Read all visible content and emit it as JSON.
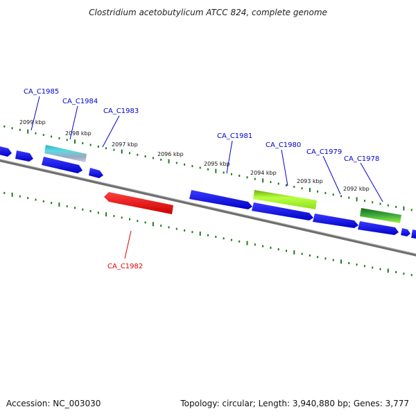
{
  "title": "Clostridium acetobutylicum ATCC 824, complete genome",
  "footer": {
    "accession": "Accession: NC_003030",
    "summary": "Topology: circular; Length: 3,940,880 bp; Genes: 3,777"
  },
  "ruler": {
    "ticks": [
      {
        "label": "2099 kbp"
      },
      {
        "label": "2098 kbp"
      },
      {
        "label": "2097 kbp"
      },
      {
        "label": "2096 kbp"
      },
      {
        "label": "2095 kbp"
      },
      {
        "label": "2094 kbp"
      },
      {
        "label": "2093 kbp"
      },
      {
        "label": "2092 kbp"
      }
    ]
  },
  "genes": [
    {
      "name": "CA_C1985",
      "color": "#0000cc"
    },
    {
      "name": "CA_C1984",
      "color": "#0000cc"
    },
    {
      "name": "CA_C1983",
      "color": "#0000cc"
    },
    {
      "name": "CA_C1982",
      "color": "#dd0000"
    },
    {
      "name": "CA_C1981",
      "color": "#0000cc"
    },
    {
      "name": "CA_C1980",
      "color": "#0000cc"
    },
    {
      "name": "CA_C1979",
      "color": "#0000cc"
    },
    {
      "name": "CA_C1978",
      "color": "#0000cc"
    }
  ],
  "colors": {
    "forward_gene": "#1a1aee",
    "reverse_gene": "#ee1111",
    "feature_cyan": "#22b8c8",
    "feature_lime": "#99ee22",
    "feature_green": "#33aa33",
    "backbone": "#777777",
    "tick": "#1c7a1c"
  }
}
